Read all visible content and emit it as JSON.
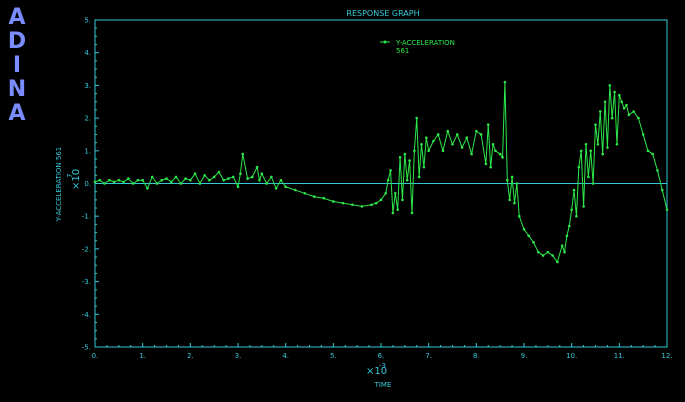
{
  "logo": {
    "text": "ADINA",
    "color": "#7b8cff"
  },
  "colors": {
    "background": "#000000",
    "axes": "#35c9d8",
    "series": "#2ee84a"
  },
  "chart_data": {
    "type": "line",
    "title": "RESPONSE GRAPH",
    "xlabel": "TIME",
    "ylabel": "Y-ACCELERATION  561",
    "x_multiplier": "×10",
    "x_multiplier_exp": "-3",
    "y_multiplier": "×10",
    "y_multiplier_exp": "7",
    "xlim": [
      0,
      12
    ],
    "ylim": [
      -5,
      5
    ],
    "x_ticks": [
      "0.",
      "1.",
      "2.",
      "3.",
      "4.",
      "5.",
      "6.",
      "7.",
      "8.",
      "9.",
      "10.",
      "11.",
      "12."
    ],
    "y_ticks": [
      "5.",
      "4.",
      "3.",
      "2.",
      "1.",
      "0.",
      "-1.",
      "-2.",
      "-3.",
      "-4.",
      "-5."
    ],
    "legend_position": "top-center",
    "series": [
      {
        "name": "Y-ACCELERATION\n561",
        "x": [
          0.0,
          0.1,
          0.2,
          0.3,
          0.4,
          0.5,
          0.6,
          0.7,
          0.8,
          0.9,
          1.0,
          1.1,
          1.2,
          1.3,
          1.4,
          1.5,
          1.6,
          1.7,
          1.8,
          1.9,
          2.0,
          2.1,
          2.2,
          2.3,
          2.4,
          2.5,
          2.6,
          2.7,
          2.8,
          2.9,
          3.0,
          3.05,
          3.1,
          3.2,
          3.3,
          3.4,
          3.45,
          3.5,
          3.6,
          3.7,
          3.8,
          3.9,
          4.0,
          4.2,
          4.4,
          4.6,
          4.8,
          5.0,
          5.2,
          5.4,
          5.6,
          5.8,
          5.9,
          6.0,
          6.1,
          6.15,
          6.2,
          6.25,
          6.3,
          6.35,
          6.4,
          6.45,
          6.5,
          6.55,
          6.6,
          6.65,
          6.7,
          6.75,
          6.8,
          6.85,
          6.9,
          6.95,
          7.0,
          7.1,
          7.2,
          7.3,
          7.4,
          7.5,
          7.6,
          7.7,
          7.8,
          7.9,
          8.0,
          8.1,
          8.2,
          8.25,
          8.3,
          8.35,
          8.4,
          8.5,
          8.55,
          8.6,
          8.65,
          8.7,
          8.75,
          8.8,
          8.85,
          8.9,
          9.0,
          9.1,
          9.2,
          9.3,
          9.4,
          9.5,
          9.6,
          9.7,
          9.8,
          9.85,
          9.9,
          9.95,
          10.0,
          10.05,
          10.1,
          10.15,
          10.2,
          10.25,
          10.3,
          10.35,
          10.4,
          10.45,
          10.5,
          10.55,
          10.6,
          10.65,
          10.7,
          10.75,
          10.8,
          10.85,
          10.9,
          10.95,
          11.0,
          11.05,
          11.1,
          11.15,
          11.2,
          11.3,
          11.4,
          11.5,
          11.6,
          11.7,
          11.8,
          11.9,
          12.0
        ],
        "y": [
          0.05,
          0.1,
          0.0,
          0.1,
          0.05,
          0.1,
          0.05,
          0.15,
          0.0,
          0.1,
          0.1,
          -0.15,
          0.2,
          0.0,
          0.1,
          0.15,
          0.05,
          0.2,
          0.0,
          0.15,
          0.1,
          0.3,
          0.0,
          0.25,
          0.1,
          0.2,
          0.35,
          0.1,
          0.15,
          0.2,
          -0.1,
          0.3,
          0.9,
          0.15,
          0.2,
          0.5,
          0.1,
          0.3,
          0.0,
          0.2,
          -0.15,
          0.1,
          -0.1,
          -0.2,
          -0.3,
          -0.4,
          -0.45,
          -0.55,
          -0.6,
          -0.65,
          -0.7,
          -0.65,
          -0.6,
          -0.5,
          -0.3,
          0.1,
          0.4,
          -0.9,
          -0.3,
          -0.8,
          0.8,
          -0.5,
          0.9,
          0.1,
          0.7,
          -0.9,
          1.0,
          2.0,
          0.2,
          1.2,
          0.5,
          1.4,
          1.0,
          1.3,
          1.5,
          1.0,
          1.6,
          1.2,
          1.5,
          1.1,
          1.4,
          0.9,
          1.6,
          1.5,
          0.6,
          1.8,
          0.5,
          1.2,
          1.0,
          0.9,
          0.8,
          3.1,
          0.1,
          -0.5,
          0.2,
          -0.6,
          0.0,
          -1.0,
          -1.4,
          -1.6,
          -1.8,
          -2.1,
          -2.2,
          -2.1,
          -2.2,
          -2.4,
          -1.9,
          -2.1,
          -1.6,
          -1.3,
          -0.8,
          -0.2,
          -1.0,
          0.5,
          1.0,
          -0.7,
          1.2,
          0.2,
          1.0,
          0.0,
          1.8,
          1.2,
          2.2,
          0.9,
          2.5,
          1.1,
          3.0,
          2.0,
          2.8,
          1.2,
          2.7,
          2.5,
          2.3,
          2.4,
          2.1,
          2.2,
          2.0,
          1.5,
          1.0,
          0.9,
          0.4,
          -0.2,
          -0.8
        ]
      }
    ]
  }
}
